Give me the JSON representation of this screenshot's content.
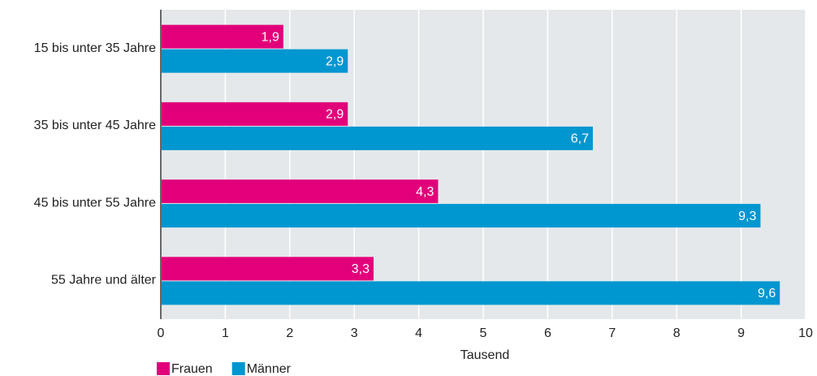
{
  "chart_data": {
    "type": "barh",
    "categories": [
      "15 bis unter 35 Jahre",
      "35 bis unter 45 Jahre",
      "45 bis unter 55 Jahre",
      "55 Jahre und älter"
    ],
    "series": [
      {
        "name": "Frauen",
        "color": "#e2007a",
        "values": [
          1.9,
          2.9,
          4.3,
          3.3
        ],
        "value_labels": [
          "1,9",
          "2,9",
          "4,3",
          "3,3"
        ]
      },
      {
        "name": "Männer",
        "color": "#0096d0",
        "values": [
          2.9,
          6.7,
          9.3,
          9.6
        ],
        "value_labels": [
          "2,9",
          "6,7",
          "9,3",
          "9,6"
        ]
      }
    ],
    "x_label": "Tausend",
    "xlim": [
      0,
      10
    ],
    "xticks": [
      0,
      1,
      2,
      3,
      4,
      5,
      6,
      7,
      8,
      9,
      10
    ],
    "grid": true,
    "legend": "bottom-left"
  }
}
